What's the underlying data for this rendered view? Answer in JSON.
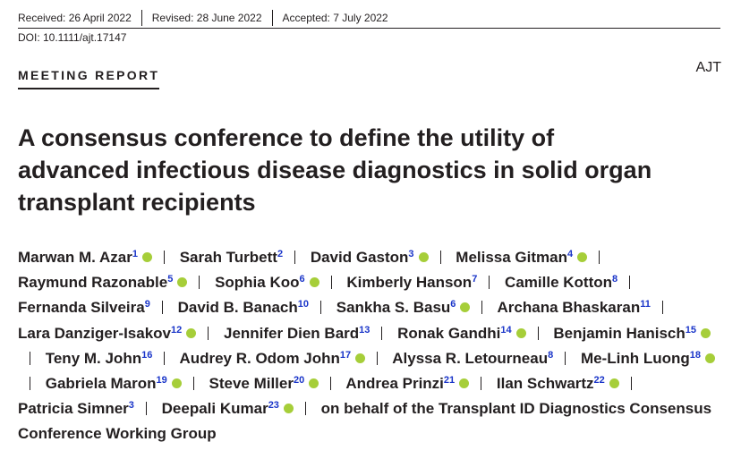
{
  "header": {
    "dates": [
      "Received: 26 April 2022",
      "Revised: 28 June 2022",
      "Accepted: 7 July 2022"
    ],
    "doi": "DOI: 10.1111/ajt.17147",
    "section": "MEETING REPORT",
    "journal": "AJT"
  },
  "title": "A consensus conference to define the utility of advanced infectious disease diagnostics in solid organ transplant recipients",
  "authors": [
    {
      "name": "Marwan M. Azar",
      "affiliation": "1",
      "orcid": true
    },
    {
      "name": "Sarah Turbett",
      "affiliation": "2",
      "orcid": false
    },
    {
      "name": "David Gaston",
      "affiliation": "3",
      "orcid": true
    },
    {
      "name": "Melissa Gitman",
      "affiliation": "4",
      "orcid": true
    },
    {
      "name": "Raymund Razonable",
      "affiliation": "5",
      "orcid": true
    },
    {
      "name": "Sophia Koo",
      "affiliation": "6",
      "orcid": true
    },
    {
      "name": "Kimberly Hanson",
      "affiliation": "7",
      "orcid": false
    },
    {
      "name": "Camille Kotton",
      "affiliation": "8",
      "orcid": false
    },
    {
      "name": "Fernanda Silveira",
      "affiliation": "9",
      "orcid": false
    },
    {
      "name": "David B. Banach",
      "affiliation": "10",
      "orcid": false
    },
    {
      "name": "Sankha S. Basu",
      "affiliation": "6",
      "orcid": true
    },
    {
      "name": "Archana Bhaskaran",
      "affiliation": "11",
      "orcid": false
    },
    {
      "name": "Lara Danziger-Isakov",
      "affiliation": "12",
      "orcid": true
    },
    {
      "name": "Jennifer Dien Bard",
      "affiliation": "13",
      "orcid": false
    },
    {
      "name": "Ronak Gandhi",
      "affiliation": "14",
      "orcid": true
    },
    {
      "name": "Benjamin Hanisch",
      "affiliation": "15",
      "orcid": true
    },
    {
      "name": "Teny M. John",
      "affiliation": "16",
      "orcid": false
    },
    {
      "name": "Audrey R. Odom John",
      "affiliation": "17",
      "orcid": true
    },
    {
      "name": "Alyssa R. Letourneau",
      "affiliation": "8",
      "orcid": false
    },
    {
      "name": "Me-Linh Luong",
      "affiliation": "18",
      "orcid": true
    },
    {
      "name": "Gabriela Maron",
      "affiliation": "19",
      "orcid": true
    },
    {
      "name": "Steve Miller",
      "affiliation": "20",
      "orcid": true
    },
    {
      "name": "Andrea Prinzi",
      "affiliation": "21",
      "orcid": true
    },
    {
      "name": "Ilan Schwartz",
      "affiliation": "22",
      "orcid": true
    },
    {
      "name": "Patricia Simner",
      "affiliation": "3",
      "orcid": false
    },
    {
      "name": "Deepali Kumar",
      "affiliation": "23",
      "orcid": true
    }
  ],
  "group": "on behalf of the Transplant ID Diagnostics Consensus Conference Working Group"
}
